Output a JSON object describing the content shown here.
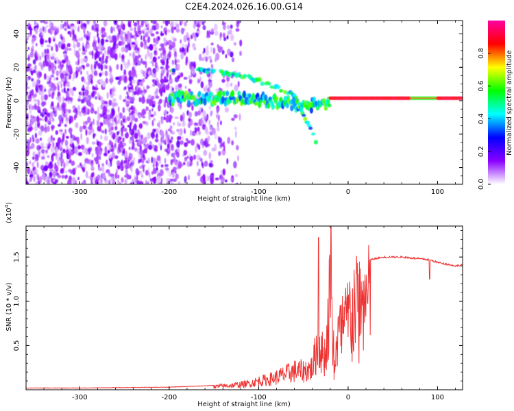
{
  "title": "C2E4.2024.026.16.00.G14",
  "chart_data": [
    {
      "type": "heatmap",
      "name": "spectrogram",
      "xlabel": "Height of straight line (km)",
      "ylabel": "Frequency (Hz)",
      "xlim": [
        -360,
        128
      ],
      "ylim": [
        -50,
        48
      ],
      "xticks": [
        -300,
        -200,
        -100,
        0,
        100
      ],
      "yticks": [
        40,
        20,
        0,
        -20,
        -40
      ],
      "colorbar": {
        "label": "Normalized spectral amplitude",
        "range": [
          0.0,
          1.0
        ],
        "ticks": [
          0.0,
          0.2,
          0.4,
          0.6,
          0.8
        ],
        "colormap": [
          "#ffffff",
          "#8a00ff",
          "#0000ff",
          "#00ffff",
          "#00ff00",
          "#ffff00",
          "#ff0000",
          "#ff00a0"
        ]
      },
      "features": [
        {
          "label": "noise",
          "x_range": [
            -360,
            -160
          ],
          "freq_range": [
            -50,
            48
          ],
          "amplitude": 0.15
        },
        {
          "label": "carrier",
          "x_range": [
            -200,
            128
          ],
          "freq": 1.5,
          "amplitude": 0.9
        },
        {
          "label": "secondary track",
          "points": [
            [
              -200,
              19
            ],
            [
              -150,
              18
            ],
            [
              -110,
              14
            ],
            [
              -80,
              8
            ],
            [
              -60,
              3
            ],
            [
              -50,
              -8
            ],
            [
              -42,
              -17
            ],
            [
              -35,
              -25
            ]
          ]
        }
      ]
    },
    {
      "type": "line",
      "name": "snr",
      "xlabel": "Height of straight line (km)",
      "ylabel": "SNR (10 * v/v)",
      "multiplier": "(x10",
      "multiplier_exp": "4",
      "multiplier_close": ")",
      "xlim": [
        -360,
        128
      ],
      "ylim": [
        0.0,
        1.85
      ],
      "xticks": [
        -300,
        -200,
        -100,
        0,
        100
      ],
      "yticks": [
        0.5,
        1.0,
        1.5
      ],
      "color": "#ee3333",
      "x": [
        -360,
        -300,
        -250,
        -200,
        -170,
        -150,
        -130,
        -110,
        -100,
        -90,
        -80,
        -70,
        -60,
        -50,
        -40,
        -33,
        -30,
        -25,
        -20,
        -15,
        -10,
        -5,
        0,
        5,
        10,
        20,
        30,
        40,
        50,
        60,
        70,
        80,
        90,
        100,
        110,
        120,
        128
      ],
      "y": [
        0.02,
        0.02,
        0.025,
        0.03,
        0.04,
        0.05,
        0.07,
        0.1,
        0.14,
        0.16,
        0.2,
        0.25,
        0.3,
        0.3,
        0.35,
        0.8,
        0.6,
        0.55,
        1.6,
        0.4,
        0.9,
        1.05,
        1.15,
        1.2,
        1.35,
        1.46,
        1.48,
        1.5,
        1.5,
        1.5,
        1.49,
        1.48,
        1.47,
        1.44,
        1.42,
        1.4,
        1.41
      ]
    }
  ]
}
